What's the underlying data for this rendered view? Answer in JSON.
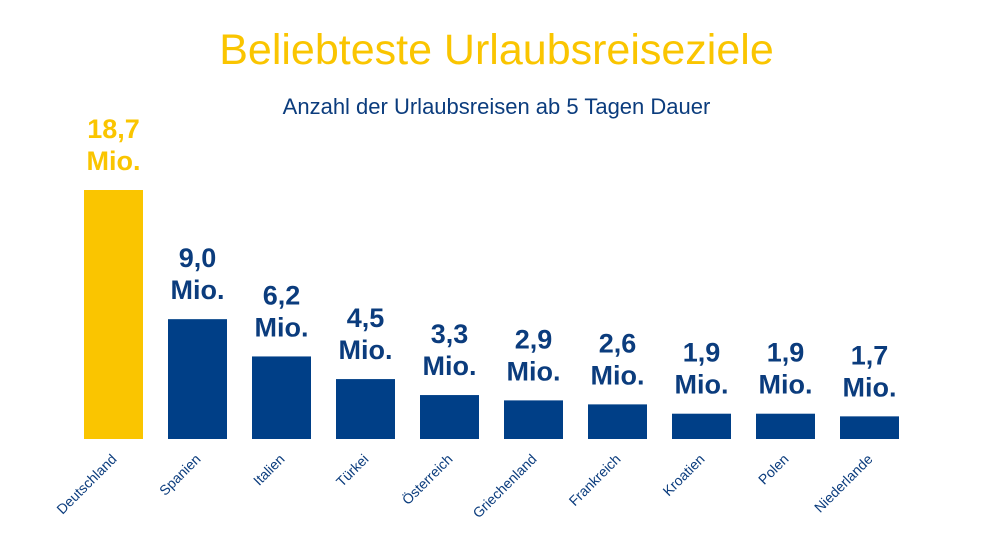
{
  "title": "Beliebteste Urlaubsreiseziele",
  "subtitle": "Anzahl der Urlaubsreisen ab 5 Tagen Dauer",
  "colors": {
    "highlight": "#FAC500",
    "bar": "#003F87",
    "text_dark": "#0B3C7D",
    "category_text": "#0B3C7D"
  },
  "chart_data": {
    "type": "bar",
    "title": "Beliebteste Urlaubsreiseziele",
    "subtitle": "Anzahl der Urlaubsreisen ab 5 Tagen Dauer",
    "categories": [
      "Deutschland",
      "Spanien",
      "Italien",
      "Türkei",
      "Österreich",
      "Griechenland",
      "Frankreich",
      "Kroatien",
      "Polen",
      "Niederlande"
    ],
    "values": [
      18.7,
      9.0,
      6.2,
      4.5,
      3.3,
      2.9,
      2.6,
      1.9,
      1.9,
      1.7
    ],
    "value_labels": [
      "18,7\nMio.",
      "9,0\nMio.",
      "6,2\nMio.",
      "4,5\nMio.",
      "3,3\nMio.",
      "2,9\nMio.",
      "2,6\nMio.",
      "1,9\nMio.",
      "1,9\nMio.",
      "1,7\nMio."
    ],
    "highlight_index": 0,
    "xlabel": "",
    "ylabel": "",
    "ylim": [
      0,
      18.7
    ],
    "grid": false,
    "legend": "none"
  }
}
